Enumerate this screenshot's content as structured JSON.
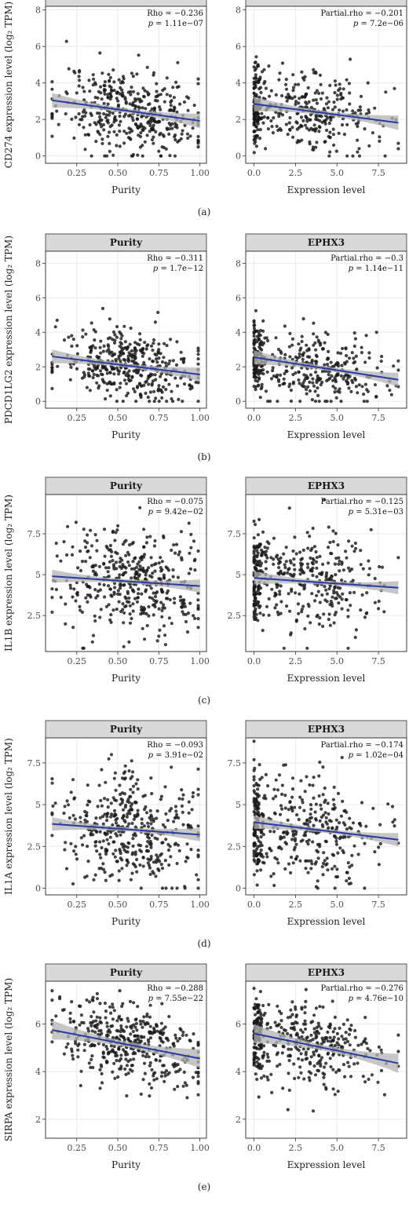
{
  "chart_data": [
    {
      "type": "scatter",
      "caption": "(a)",
      "ylabel": "CD274 expression level (log₂ TPM)",
      "ylim": [
        -0.4,
        8.2
      ],
      "yticks": [
        0,
        2,
        4,
        6,
        8
      ],
      "panels": [
        {
          "strip": "",
          "xlabel": "Purity",
          "xlim": [
            0.06,
            1.04
          ],
          "xticks": [
            0.25,
            0.5,
            0.75,
            1.0
          ],
          "tick_labels": [
            "0.25",
            "0.50",
            "0.75",
            "1.00"
          ],
          "stat_line1": "Rho = −0.236",
          "stat_line2_pre": "p",
          "stat_line2": " = 1.11e−07",
          "fit": {
            "x": [
              0.1,
              1.0
            ],
            "y": [
              3.05,
              1.92
            ]
          },
          "points": {
            "n": 420,
            "x_mean": 0.58,
            "x_sd": 0.22,
            "x_range": [
              0.1,
              0.99
            ],
            "y_sd": 1.15,
            "y_range": [
              0.0,
              8.0
            ],
            "seed": 11
          }
        },
        {
          "strip": "",
          "xlabel": "Expression level",
          "xlim": [
            -0.5,
            9.2
          ],
          "xticks": [
            0.0,
            2.5,
            5.0,
            7.5
          ],
          "tick_labels": [
            "0.0",
            "2.5",
            "5.0",
            "7.5"
          ],
          "stat_line1": "Partial.rho = −0.201",
          "stat_line2_pre": "p",
          "stat_line2": " = 7.2e−06",
          "fit": {
            "x": [
              0.0,
              8.7
            ],
            "y": [
              2.85,
              1.82
            ]
          },
          "points": {
            "n": 420,
            "x_mean": 3.3,
            "x_sd": 2.2,
            "x_range": [
              0.0,
              8.7
            ],
            "y_sd": 1.1,
            "y_range": [
              0.0,
              6.0
            ],
            "cluster": 0.3,
            "seed": 12
          }
        }
      ]
    },
    {
      "type": "scatter",
      "caption": "(b)",
      "ylabel": "PDCD1LG2 expression level (log₂ TPM)",
      "ylim": [
        -0.4,
        8.7
      ],
      "yticks": [
        0,
        2,
        4,
        6,
        8
      ],
      "panels": [
        {
          "strip": "Purity",
          "xlabel": "Purity",
          "xlim": [
            0.06,
            1.04
          ],
          "xticks": [
            0.25,
            0.5,
            0.75,
            1.0
          ],
          "tick_labels": [
            "0.25",
            "0.50",
            "0.75",
            "1.00"
          ],
          "stat_line1": "Rho = −0.311",
          "stat_line2_pre": "p",
          "stat_line2": " = 1.7e−12",
          "fit": {
            "x": [
              0.1,
              1.0
            ],
            "y": [
              2.6,
              1.55
            ]
          },
          "points": {
            "n": 420,
            "x_mean": 0.58,
            "x_sd": 0.22,
            "x_range": [
              0.1,
              0.99
            ],
            "y_sd": 1.0,
            "y_range": [
              0.0,
              8.2
            ],
            "seed": 21
          }
        },
        {
          "strip": "EPHX3",
          "xlabel": "Expression level",
          "xlim": [
            -0.5,
            9.2
          ],
          "xticks": [
            0.0,
            2.5,
            5.0,
            7.5
          ],
          "tick_labels": [
            "0.0",
            "2.5",
            "5.0",
            "7.5"
          ],
          "stat_line1": "Partial.rho = −0.3",
          "stat_line2_pre": "p",
          "stat_line2": " = 1.14e−11",
          "fit": {
            "x": [
              0.0,
              8.7
            ],
            "y": [
              2.55,
              1.25
            ]
          },
          "points": {
            "n": 420,
            "x_mean": 3.3,
            "x_sd": 2.2,
            "x_range": [
              0.0,
              8.7
            ],
            "y_sd": 1.0,
            "y_range": [
              0.0,
              5.4
            ],
            "cluster": 0.3,
            "seed": 22
          }
        }
      ]
    },
    {
      "type": "scatter",
      "caption": "(c)",
      "ylabel": "IL1B expression level (log₂ TPM)",
      "ylim": [
        0.3,
        9.9
      ],
      "yticks": [
        2.5,
        5.0,
        7.5
      ],
      "panels": [
        {
          "strip": "Purity",
          "xlabel": "Purity",
          "xlim": [
            0.06,
            1.04
          ],
          "xticks": [
            0.25,
            0.5,
            0.75,
            1.0
          ],
          "tick_labels": [
            "0.25",
            "0.50",
            "0.75",
            "1.00"
          ],
          "stat_line1": "Rho = −0.075",
          "stat_line2_pre": "p",
          "stat_line2": " = 9.42e−02",
          "fit": {
            "x": [
              0.1,
              1.0
            ],
            "y": [
              4.9,
              4.3
            ]
          },
          "points": {
            "n": 420,
            "x_mean": 0.58,
            "x_sd": 0.22,
            "x_range": [
              0.1,
              0.99
            ],
            "y_sd": 1.55,
            "y_range": [
              0.5,
              9.6
            ],
            "seed": 31
          }
        },
        {
          "strip": "EPHX3",
          "xlabel": "Expression level",
          "xlim": [
            -0.5,
            9.2
          ],
          "xticks": [
            0.0,
            2.5,
            5.0,
            7.5
          ],
          "tick_labels": [
            "0.0",
            "2.5",
            "5.0",
            "7.5"
          ],
          "stat_line1": "Partial.rho = −0.125",
          "stat_line2_pre": "p",
          "stat_line2": " = 5.31e−03",
          "fit": {
            "x": [
              0.0,
              8.7
            ],
            "y": [
              4.8,
              4.2
            ]
          },
          "points": {
            "n": 420,
            "x_mean": 3.3,
            "x_sd": 2.2,
            "x_range": [
              0.0,
              8.7
            ],
            "y_sd": 1.5,
            "y_range": [
              0.5,
              9.6
            ],
            "cluster": 0.3,
            "seed": 32
          }
        }
      ]
    },
    {
      "type": "scatter",
      "caption": "(d)",
      "ylabel": "IL1A expression level (log₂ TPM)",
      "ylim": [
        -0.4,
        9.0
      ],
      "yticks": [
        0.0,
        2.5,
        5.0,
        7.5
      ],
      "panels": [
        {
          "strip": "Purity",
          "xlabel": "Purity",
          "xlim": [
            0.06,
            1.04
          ],
          "xticks": [
            0.25,
            0.5,
            0.75,
            1.0
          ],
          "tick_labels": [
            "0.25",
            "0.50",
            "0.75",
            "1.00"
          ],
          "stat_line1": "Rho = −0.093",
          "stat_line2_pre": "p",
          "stat_line2": " = 3.91e−02",
          "fit": {
            "x": [
              0.1,
              1.0
            ],
            "y": [
              3.85,
              3.2
            ]
          },
          "points": {
            "n": 420,
            "x_mean": 0.58,
            "x_sd": 0.22,
            "x_range": [
              0.1,
              0.99
            ],
            "y_sd": 1.7,
            "y_range": [
              0.0,
              8.0
            ],
            "seed": 41
          }
        },
        {
          "strip": "EPHX3",
          "xlabel": "Expression level",
          "xlim": [
            -0.5,
            9.2
          ],
          "xticks": [
            0.0,
            2.5,
            5.0,
            7.5
          ],
          "tick_labels": [
            "0.0",
            "2.5",
            "5.0",
            "7.5"
          ],
          "stat_line1": "Partial.rho = −0.174",
          "stat_line2_pre": "p",
          "stat_line2": " = 1.02e−04",
          "fit": {
            "x": [
              0.0,
              8.7
            ],
            "y": [
              3.95,
              2.9
            ]
          },
          "points": {
            "n": 420,
            "x_mean": 3.3,
            "x_sd": 2.2,
            "x_range": [
              0.0,
              8.7
            ],
            "y_sd": 1.65,
            "y_range": [
              0.0,
              8.8
            ],
            "cluster": 0.3,
            "seed": 42
          }
        }
      ]
    },
    {
      "type": "scatter",
      "caption": "(e)",
      "ylabel": "SIRPA expression level (log₂ TPM)",
      "ylim": [
        1.2,
        7.8
      ],
      "yticks": [
        2,
        4,
        6
      ],
      "panels": [
        {
          "strip": "Purity",
          "xlabel": "Purity",
          "xlim": [
            0.06,
            1.04
          ],
          "xticks": [
            0.25,
            0.5,
            0.75,
            1.0
          ],
          "tick_labels": [
            "0.25",
            "0.50",
            "0.75",
            "1.00"
          ],
          "stat_line1": "Rho = −0.288",
          "stat_line2_pre": "p",
          "stat_line2": " = 7.55e−22",
          "fit": {
            "x": [
              0.1,
              1.0
            ],
            "y": [
              5.75,
              4.55
            ]
          },
          "points": {
            "n": 420,
            "x_mean": 0.58,
            "x_sd": 0.22,
            "x_range": [
              0.1,
              0.99
            ],
            "y_sd": 0.85,
            "y_range": [
              1.4,
              7.4
            ],
            "seed": 51
          }
        },
        {
          "strip": "EPHX3",
          "xlabel": "Expression level",
          "xlim": [
            -0.5,
            9.2
          ],
          "xticks": [
            0.0,
            2.5,
            5.0,
            7.5
          ],
          "tick_labels": [
            "0.0",
            "2.5",
            "5.0",
            "7.5"
          ],
          "stat_line1": "Partial.rho = −0.276",
          "stat_line2_pre": "p",
          "stat_line2": " = 4.76e−10",
          "fit": {
            "x": [
              0.0,
              8.7
            ],
            "y": [
              5.6,
              4.35
            ]
          },
          "points": {
            "n": 420,
            "x_mean": 3.3,
            "x_sd": 2.2,
            "x_range": [
              0.0,
              8.7
            ],
            "y_sd": 0.85,
            "y_range": [
              1.4,
              7.5
            ],
            "cluster": 0.3,
            "seed": 52
          }
        }
      ]
    }
  ],
  "colors": {
    "point": "#1a1a1a",
    "fit_line": "#2b3a9c",
    "ci_band": "#b3b3b3",
    "strip_bg": "#d9d9d9",
    "grid": "#ebebeb"
  }
}
